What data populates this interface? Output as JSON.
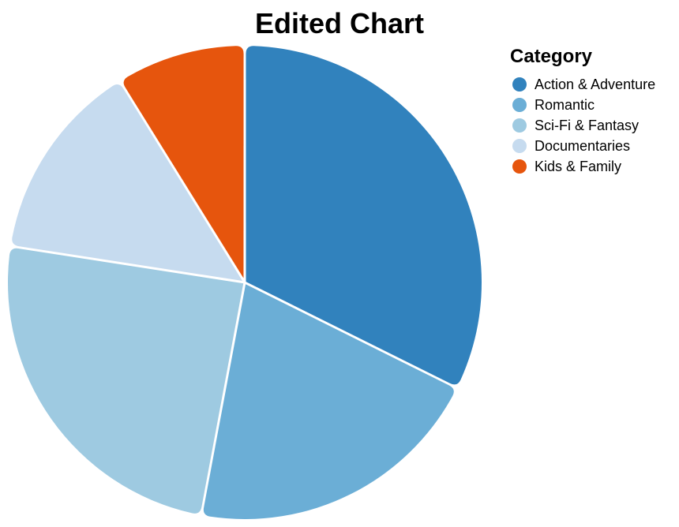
{
  "chart_data": {
    "type": "pie",
    "title": "Edited Chart",
    "legend": {
      "title": "Category",
      "placement": "top-right"
    },
    "categories": [
      "Action & Adventure",
      "Romantic",
      "Sci-Fi & Fantasy",
      "Documentaries",
      "Kids & Family"
    ],
    "values": [
      33,
      21,
      25,
      14,
      9
    ],
    "radius_values": [
      300,
      300,
      300,
      300,
      300
    ],
    "colors": [
      "#3182bd",
      "#6baed6",
      "#9ecae1",
      "#c6dbef",
      "#e6550d"
    ]
  }
}
